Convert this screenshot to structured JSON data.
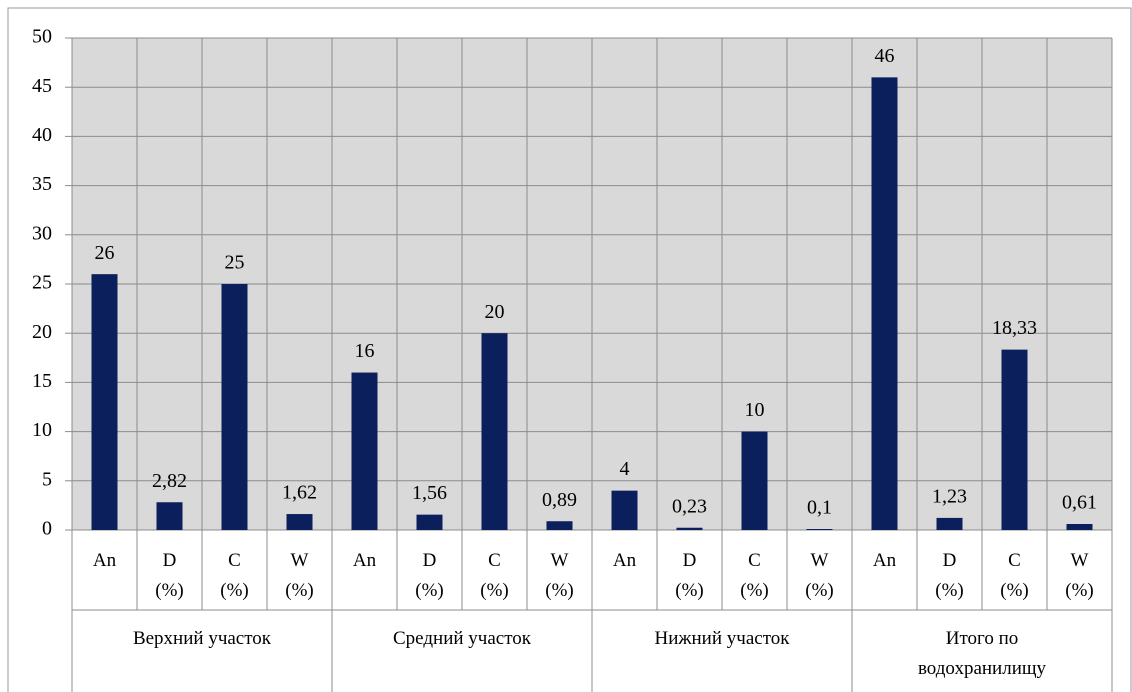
{
  "chart_data": {
    "type": "bar",
    "groups": [
      "Верхний участок",
      "Средний участок",
      "Нижний участок",
      "Итого по водохранилищу"
    ],
    "categories": [
      "An",
      "D (%)",
      "C (%)",
      "W (%)",
      "An",
      "D (%)",
      "C (%)",
      "W (%)",
      "An",
      "D (%)",
      "C (%)",
      "W (%)",
      "An",
      "D (%)",
      "C (%)",
      "W (%)"
    ],
    "values": [
      26,
      2.82,
      25,
      1.62,
      16,
      1.56,
      20,
      0.89,
      4,
      0.23,
      10,
      0.1,
      46,
      1.23,
      18.33,
      0.61
    ],
    "value_labels": [
      "26",
      "2,82",
      "25",
      "1,62",
      "16",
      "1,56",
      "20",
      "0,89",
      "4",
      "0,23",
      "10",
      "0,1",
      "46",
      "1,23",
      "18,33",
      "0,61"
    ],
    "color": "#0b1f5c",
    "ylim": [
      0,
      50
    ],
    "yticks": [
      0,
      5,
      10,
      15,
      20,
      25,
      30,
      35,
      40,
      45,
      50
    ],
    "grid": true
  }
}
